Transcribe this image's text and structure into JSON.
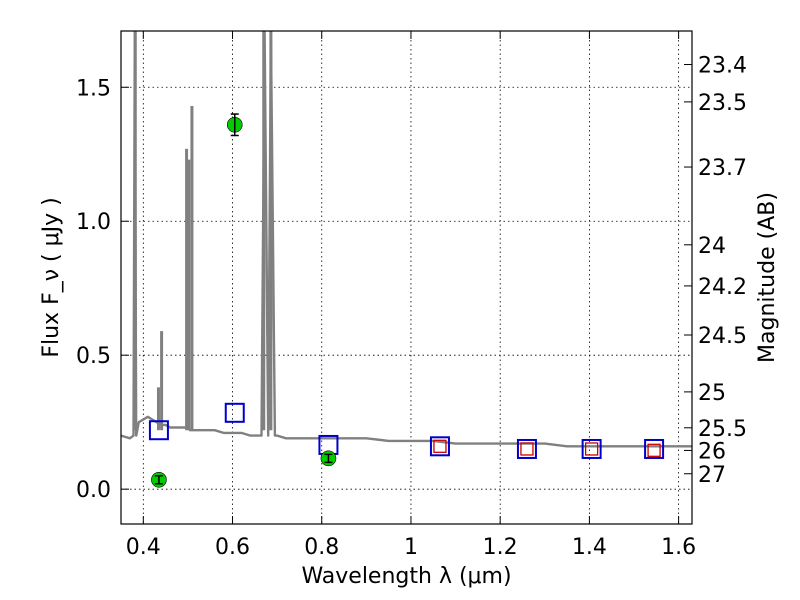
{
  "chart_data": {
    "type": "scatter",
    "xlabel": "Wavelength  λ (μm)",
    "ylabel": "Flux  F_ν ( μJy )",
    "ylabel_right": "Magnitude (AB)",
    "xlim": [
      0.35,
      1.63
    ],
    "ylim": [
      -0.13,
      1.71
    ],
    "x_ticks": [
      0.4,
      0.6,
      0.8,
      1.0,
      1.2,
      1.4,
      1.6
    ],
    "x_tick_labels": [
      "0.4",
      "0.6",
      "0.8",
      "1",
      "1.2",
      "1.4",
      "1.6"
    ],
    "y_ticks": [
      0.0,
      0.5,
      1.0,
      1.5
    ],
    "y_tick_labels": [
      "0.0",
      "0.5",
      "1.0",
      "1.5"
    ],
    "mag_ticks": [
      23.4,
      23.5,
      23.7,
      24,
      24.2,
      24.5,
      25,
      25.5,
      26,
      27
    ],
    "mag_tick_labels": [
      "23.4",
      "23.5",
      "23.7",
      "24",
      "24.2",
      "24.5",
      "25",
      "25.5",
      "26",
      "27"
    ],
    "grid": true,
    "colors": {
      "spectrum": "#808080",
      "observed": "#00cc00",
      "model_box": "#0000cc",
      "hst_box": "#cc0000"
    },
    "series": [
      {
        "kind": "spectrum",
        "style": "line",
        "x": [
          0.35,
          0.37,
          0.378,
          0.381,
          0.384,
          0.39,
          0.4,
          0.41,
          0.42,
          0.43,
          0.44,
          0.45,
          0.46,
          0.48,
          0.49,
          0.495,
          0.5,
          0.505,
          0.51,
          0.515,
          0.52,
          0.54,
          0.56,
          0.58,
          0.6,
          0.62,
          0.64,
          0.66,
          0.665,
          0.672,
          0.68,
          0.686,
          0.695,
          0.7,
          0.72,
          0.75,
          0.78,
          0.8,
          0.82,
          0.85,
          0.9,
          0.95,
          1.0,
          1.05,
          1.1,
          1.15,
          1.2,
          1.25,
          1.3,
          1.35,
          1.4,
          1.45,
          1.5,
          1.55,
          1.6,
          1.63
        ],
        "y": [
          0.2,
          0.19,
          0.2,
          1.9,
          0.2,
          0.25,
          0.26,
          0.27,
          0.26,
          0.25,
          0.24,
          0.24,
          0.23,
          0.23,
          0.23,
          0.23,
          0.23,
          0.22,
          0.22,
          0.22,
          0.22,
          0.22,
          0.22,
          0.21,
          0.21,
          0.21,
          0.2,
          0.2,
          0.2,
          1.9,
          0.2,
          1.9,
          0.2,
          0.2,
          0.19,
          0.19,
          0.19,
          0.19,
          0.19,
          0.19,
          0.19,
          0.18,
          0.18,
          0.18,
          0.17,
          0.17,
          0.17,
          0.17,
          0.17,
          0.16,
          0.16,
          0.16,
          0.16,
          0.16,
          0.16,
          0.16
        ]
      },
      {
        "kind": "observed",
        "style": "marker-circle",
        "x": [
          0.435,
          0.605,
          0.815
        ],
        "y": [
          0.035,
          1.36,
          0.115
        ],
        "yerr": [
          0.015,
          0.04,
          0.015
        ]
      },
      {
        "kind": "model-photometry",
        "style": "marker-square-open",
        "x": [
          0.435,
          0.605,
          0.815,
          1.065,
          1.26,
          1.405,
          1.545
        ],
        "y": [
          0.22,
          0.285,
          0.165,
          0.16,
          0.15,
          0.15,
          0.15
        ]
      },
      {
        "kind": "hst-photometry",
        "style": "marker-square-open-small",
        "x": [
          1.065,
          1.26,
          1.405,
          1.545
        ],
        "y": [
          0.16,
          0.15,
          0.15,
          0.145
        ]
      }
    ],
    "emission_lines": [
      {
        "x": 0.382,
        "y": 1.9
      },
      {
        "x": 0.434,
        "y": 0.38
      },
      {
        "x": 0.441,
        "y": 0.59
      },
      {
        "x": 0.497,
        "y": 1.27
      },
      {
        "x": 0.502,
        "y": 1.23
      },
      {
        "x": 0.509,
        "y": 1.43
      },
      {
        "x": 0.67,
        "y": 1.9
      },
      {
        "x": 0.686,
        "y": 1.9
      }
    ]
  }
}
